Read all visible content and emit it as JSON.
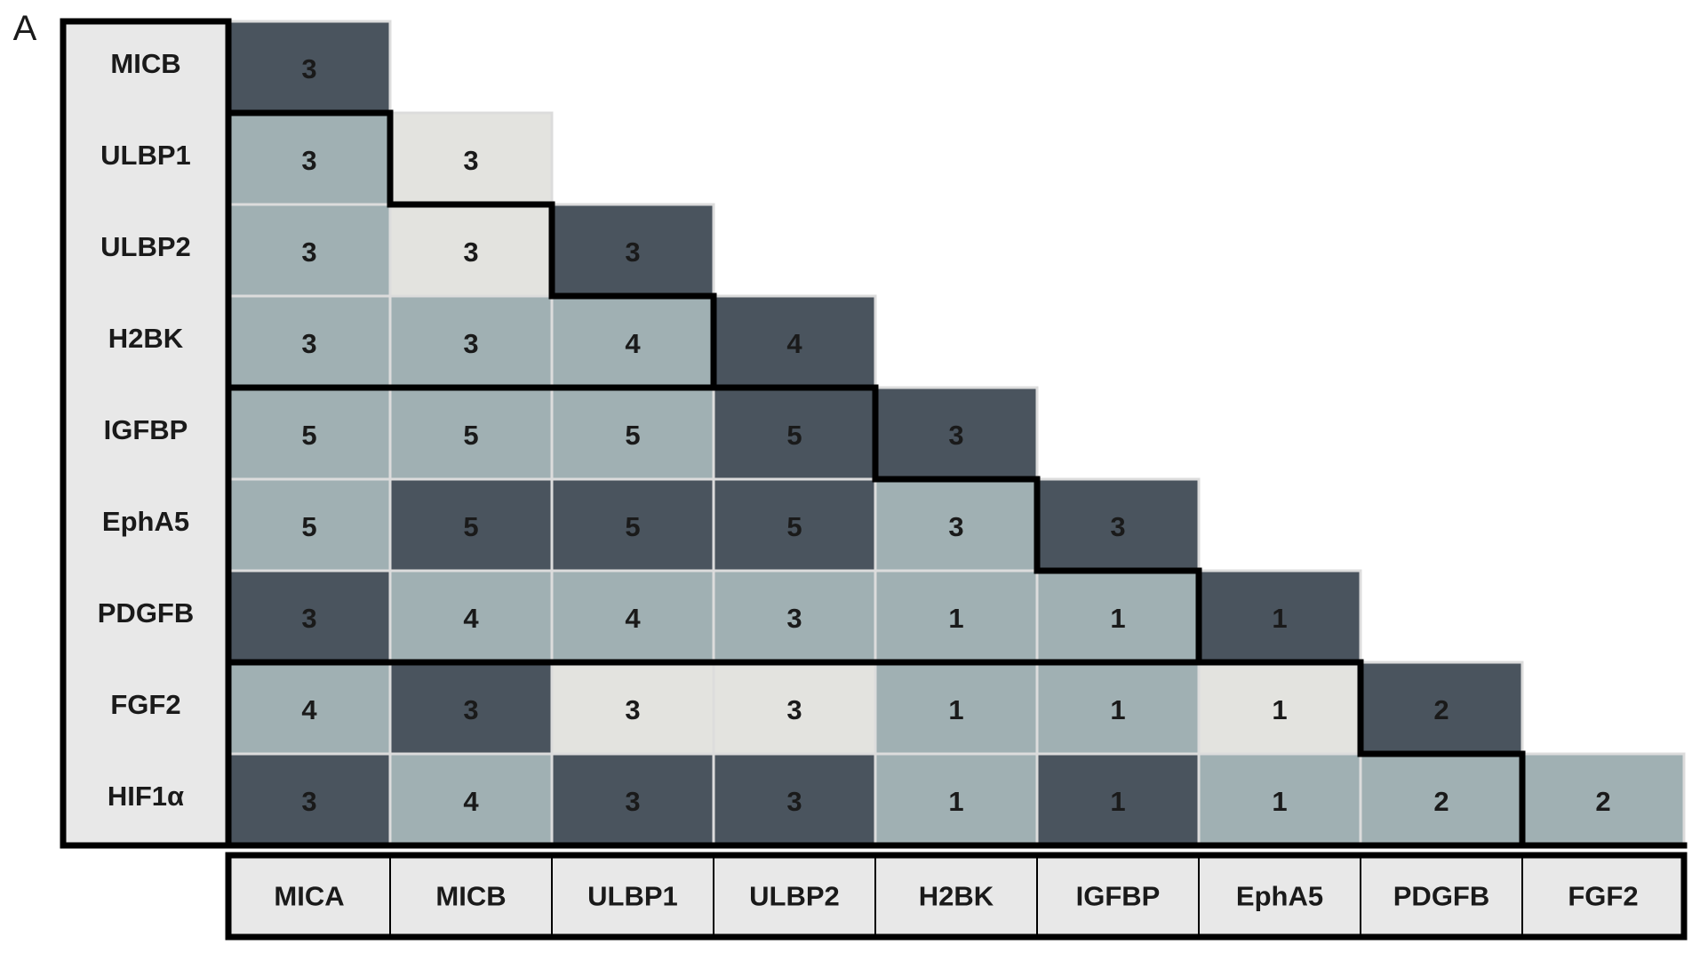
{
  "panel_label": "A",
  "rows": [
    {
      "label": "MICB",
      "values": [
        3
      ],
      "colors": [
        "#4a545e"
      ]
    },
    {
      "label": "ULBP1",
      "values": [
        3,
        3
      ],
      "colors": [
        "#a0b0b3",
        "#e3e3df"
      ]
    },
    {
      "label": "ULBP2",
      "values": [
        3,
        3,
        3
      ],
      "colors": [
        "#a0b0b3",
        "#e3e3df",
        "#4a545e"
      ]
    },
    {
      "label": "H2BK",
      "values": [
        3,
        3,
        4,
        4
      ],
      "colors": [
        "#a0b0b3",
        "#a0b0b3",
        "#a0b0b3",
        "#4a545e"
      ]
    },
    {
      "label": "IGFBP",
      "values": [
        5,
        5,
        5,
        5,
        3
      ],
      "colors": [
        "#a0b0b3",
        "#a0b0b3",
        "#a0b0b3",
        "#4a545e",
        "#4a545e"
      ]
    },
    {
      "label": "EphA5",
      "values": [
        5,
        5,
        5,
        5,
        3,
        3
      ],
      "colors": [
        "#a0b0b3",
        "#4a545e",
        "#4a545e",
        "#4a545e",
        "#a0b0b3",
        "#4a545e"
      ]
    },
    {
      "label": "PDGFB",
      "values": [
        3,
        4,
        4,
        3,
        1,
        1,
        1
      ],
      "colors": [
        "#4a545e",
        "#a0b0b3",
        "#a0b0b3",
        "#a0b0b3",
        "#a0b0b3",
        "#a0b0b3",
        "#4a545e"
      ]
    },
    {
      "label": "FGF2",
      "values": [
        4,
        3,
        3,
        3,
        1,
        1,
        1,
        2
      ],
      "colors": [
        "#a0b0b3",
        "#4a545e",
        "#e3e3df",
        "#e3e3df",
        "#a0b0b3",
        "#a0b0b3",
        "#e3e3df",
        "#4a545e"
      ]
    },
    {
      "label": "HIF1α",
      "values": [
        3,
        4,
        3,
        3,
        1,
        1,
        1,
        2,
        2
      ],
      "colors": [
        "#4a545e",
        "#a0b0b3",
        "#4a545e",
        "#4a545e",
        "#a0b0b3",
        "#4a545e",
        "#a0b0b3",
        "#a0b0b3",
        "#a0b0b3"
      ]
    }
  ],
  "columns": [
    "MICA",
    "MICB",
    "ULBP1",
    "ULBP2",
    "H2BK",
    "IGFBP",
    "EphA5",
    "PDGFB",
    "FGF2"
  ]
}
